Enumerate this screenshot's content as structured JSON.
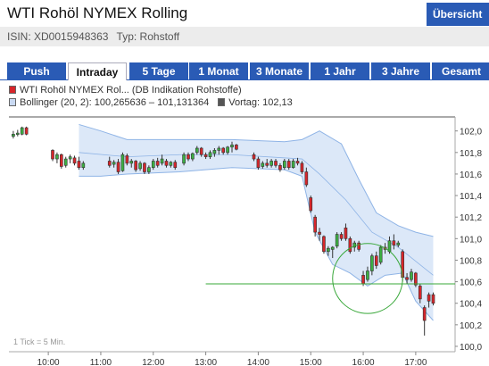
{
  "header": {
    "title": "WTI Rohöl NYMEX Rolling",
    "overview_label": "Übersicht",
    "isin": "ISIN: XD0015948363",
    "type": "Typ: Rohstoff"
  },
  "tabs": [
    {
      "label": "Push",
      "active": false
    },
    {
      "label": "Intraday",
      "active": true
    },
    {
      "label": "5 Tage",
      "active": false
    },
    {
      "label": "1 Monat",
      "active": false
    },
    {
      "label": "3 Monate",
      "active": false
    },
    {
      "label": "1 Jahr",
      "active": false
    },
    {
      "label": "3 Jahre",
      "active": false
    },
    {
      "label": "Gesamt",
      "active": false
    }
  ],
  "legend": {
    "series": "WTI Rohöl NYMEX Rol... (DB Indikation Rohstoffe)",
    "bollinger": "Bollinger (20, 2): 100,265636 – 101,131364",
    "vortag": "Vortag: 102,13"
  },
  "colors": {
    "accent": "#2a5bb5",
    "up_candle": "#3cb043",
    "down_candle": "#d7262b",
    "band_fill": "#dce8f8",
    "band_line": "#8fb4e6",
    "reference_line": "#39a83a",
    "circle": "#39a83a"
  },
  "chart_data": {
    "type": "candlestick",
    "tick_note": "1 Tick = 5 Min.",
    "x_ticks": [
      "10:00",
      "11:00",
      "12:00",
      "13:00",
      "14:00",
      "15:00",
      "16:00",
      "17:00"
    ],
    "y_ticks": [
      "100,0",
      "100,2",
      "100,4",
      "100,6",
      "100,8",
      "101,0",
      "101,2",
      "101,4",
      "101,6",
      "101,8",
      "102,0"
    ],
    "ylim": [
      99.95,
      102.13
    ],
    "xlim": [
      "09:15",
      "17:45"
    ],
    "previous_close": 102.13,
    "reference_level": 100.58,
    "highlight_circle": {
      "center_time": "16:05",
      "center_value": 100.63,
      "radius_minutes": 40
    },
    "candles": [
      {
        "t": "09:20",
        "o": 101.95,
        "h": 102.0,
        "l": 101.93,
        "c": 101.97
      },
      {
        "t": "09:25",
        "o": 101.97,
        "h": 102.01,
        "l": 101.95,
        "c": 101.98
      },
      {
        "t": "09:30",
        "o": 101.97,
        "h": 102.04,
        "l": 101.96,
        "c": 102.03
      },
      {
        "t": "09:35",
        "o": 102.03,
        "h": 102.04,
        "l": 101.96,
        "c": 101.97
      },
      {
        "t": "10:05",
        "o": 101.82,
        "h": 101.83,
        "l": 101.72,
        "c": 101.74
      },
      {
        "t": "10:10",
        "o": 101.74,
        "h": 101.8,
        "l": 101.7,
        "c": 101.78
      },
      {
        "t": "10:15",
        "o": 101.78,
        "h": 101.79,
        "l": 101.65,
        "c": 101.67
      },
      {
        "t": "10:20",
        "o": 101.68,
        "h": 101.76,
        "l": 101.66,
        "c": 101.74
      },
      {
        "t": "10:25",
        "o": 101.74,
        "h": 101.78,
        "l": 101.7,
        "c": 101.76
      },
      {
        "t": "10:30",
        "o": 101.75,
        "h": 101.77,
        "l": 101.68,
        "c": 101.7
      },
      {
        "t": "10:35",
        "o": 101.72,
        "h": 101.76,
        "l": 101.64,
        "c": 101.66
      },
      {
        "t": "10:40",
        "o": 101.66,
        "h": 101.72,
        "l": 101.64,
        "c": 101.7
      },
      {
        "t": "11:10",
        "o": 101.72,
        "h": 101.76,
        "l": 101.66,
        "c": 101.68
      },
      {
        "t": "11:15",
        "o": 101.69,
        "h": 101.73,
        "l": 101.66,
        "c": 101.71
      },
      {
        "t": "11:20",
        "o": 101.71,
        "h": 101.74,
        "l": 101.6,
        "c": 101.62
      },
      {
        "t": "11:25",
        "o": 101.63,
        "h": 101.8,
        "l": 101.62,
        "c": 101.78
      },
      {
        "t": "11:30",
        "o": 101.77,
        "h": 101.79,
        "l": 101.68,
        "c": 101.7
      },
      {
        "t": "11:35",
        "o": 101.7,
        "h": 101.74,
        "l": 101.66,
        "c": 101.72
      },
      {
        "t": "11:40",
        "o": 101.72,
        "h": 101.73,
        "l": 101.62,
        "c": 101.64
      },
      {
        "t": "11:45",
        "o": 101.65,
        "h": 101.72,
        "l": 101.63,
        "c": 101.7
      },
      {
        "t": "11:50",
        "o": 101.7,
        "h": 101.71,
        "l": 101.6,
        "c": 101.62
      },
      {
        "t": "11:55",
        "o": 101.62,
        "h": 101.68,
        "l": 101.6,
        "c": 101.66
      },
      {
        "t": "12:00",
        "o": 101.66,
        "h": 101.74,
        "l": 101.64,
        "c": 101.72
      },
      {
        "t": "12:05",
        "o": 101.72,
        "h": 101.75,
        "l": 101.66,
        "c": 101.68
      },
      {
        "t": "12:10",
        "o": 101.7,
        "h": 101.78,
        "l": 101.68,
        "c": 101.74
      },
      {
        "t": "12:15",
        "o": 101.72,
        "h": 101.74,
        "l": 101.66,
        "c": 101.68
      },
      {
        "t": "12:20",
        "o": 101.68,
        "h": 101.72,
        "l": 101.66,
        "c": 101.71
      },
      {
        "t": "12:25",
        "o": 101.71,
        "h": 101.73,
        "l": 101.64,
        "c": 101.66
      },
      {
        "t": "12:35",
        "o": 101.7,
        "h": 101.8,
        "l": 101.68,
        "c": 101.78
      },
      {
        "t": "12:40",
        "o": 101.78,
        "h": 101.8,
        "l": 101.72,
        "c": 101.74
      },
      {
        "t": "12:45",
        "o": 101.74,
        "h": 101.8,
        "l": 101.72,
        "c": 101.79
      },
      {
        "t": "12:50",
        "o": 101.8,
        "h": 101.86,
        "l": 101.78,
        "c": 101.84
      },
      {
        "t": "12:55",
        "o": 101.84,
        "h": 101.85,
        "l": 101.76,
        "c": 101.78
      },
      {
        "t": "13:00",
        "o": 101.78,
        "h": 101.8,
        "l": 101.74,
        "c": 101.76
      },
      {
        "t": "13:05",
        "o": 101.76,
        "h": 101.82,
        "l": 101.74,
        "c": 101.8
      },
      {
        "t": "13:10",
        "o": 101.79,
        "h": 101.84,
        "l": 101.76,
        "c": 101.82
      },
      {
        "t": "13:15",
        "o": 101.82,
        "h": 101.86,
        "l": 101.78,
        "c": 101.84
      },
      {
        "t": "13:20",
        "o": 101.84,
        "h": 101.85,
        "l": 101.78,
        "c": 101.8
      },
      {
        "t": "13:25",
        "o": 101.8,
        "h": 101.86,
        "l": 101.78,
        "c": 101.85
      },
      {
        "t": "13:30",
        "o": 101.85,
        "h": 101.9,
        "l": 101.8,
        "c": 101.87
      },
      {
        "t": "13:35",
        "o": 101.87,
        "h": 101.88,
        "l": 101.82,
        "c": 101.83
      },
      {
        "t": "13:55",
        "o": 101.78,
        "h": 101.8,
        "l": 101.72,
        "c": 101.74
      },
      {
        "t": "14:00",
        "o": 101.74,
        "h": 101.76,
        "l": 101.64,
        "c": 101.66
      },
      {
        "t": "14:05",
        "o": 101.67,
        "h": 101.72,
        "l": 101.65,
        "c": 101.7
      },
      {
        "t": "14:10",
        "o": 101.7,
        "h": 101.74,
        "l": 101.66,
        "c": 101.68
      },
      {
        "t": "14:15",
        "o": 101.68,
        "h": 101.74,
        "l": 101.66,
        "c": 101.72
      },
      {
        "t": "14:20",
        "o": 101.72,
        "h": 101.74,
        "l": 101.66,
        "c": 101.68
      },
      {
        "t": "14:25",
        "o": 101.68,
        "h": 101.7,
        "l": 101.62,
        "c": 101.64
      },
      {
        "t": "14:30",
        "o": 101.66,
        "h": 101.74,
        "l": 101.64,
        "c": 101.72
      },
      {
        "t": "14:35",
        "o": 101.72,
        "h": 101.74,
        "l": 101.64,
        "c": 101.66
      },
      {
        "t": "14:40",
        "o": 101.66,
        "h": 101.74,
        "l": 101.65,
        "c": 101.72
      },
      {
        "t": "14:45",
        "o": 101.72,
        "h": 101.75,
        "l": 101.68,
        "c": 101.7
      },
      {
        "t": "14:50",
        "o": 101.7,
        "h": 101.72,
        "l": 101.6,
        "c": 101.62
      },
      {
        "t": "14:55",
        "o": 101.62,
        "h": 101.66,
        "l": 101.48,
        "c": 101.5
      },
      {
        "t": "15:00",
        "o": 101.38,
        "h": 101.4,
        "l": 101.24,
        "c": 101.26
      },
      {
        "t": "15:05",
        "o": 101.2,
        "h": 101.22,
        "l": 101.02,
        "c": 101.06
      },
      {
        "t": "15:10",
        "o": 101.06,
        "h": 101.1,
        "l": 100.98,
        "c": 101.04
      },
      {
        "t": "15:15",
        "o": 101.02,
        "h": 101.03,
        "l": 100.86,
        "c": 100.88
      },
      {
        "t": "15:20",
        "o": 100.88,
        "h": 100.93,
        "l": 100.84,
        "c": 100.91
      },
      {
        "t": "15:25",
        "o": 100.9,
        "h": 100.93,
        "l": 100.82,
        "c": 100.92
      },
      {
        "t": "15:30",
        "o": 100.93,
        "h": 101.06,
        "l": 100.91,
        "c": 101.04
      },
      {
        "t": "15:35",
        "o": 101.04,
        "h": 101.06,
        "l": 100.98,
        "c": 101.0
      },
      {
        "t": "15:40",
        "o": 101.1,
        "h": 101.14,
        "l": 100.98,
        "c": 101.0
      },
      {
        "t": "15:45",
        "o": 101.0,
        "h": 101.02,
        "l": 100.86,
        "c": 100.88
      },
      {
        "t": "15:50",
        "o": 100.92,
        "h": 100.98,
        "l": 100.88,
        "c": 100.96
      },
      {
        "t": "15:55",
        "o": 100.96,
        "h": 100.98,
        "l": 100.88,
        "c": 100.9
      },
      {
        "t": "16:00",
        "o": 100.66,
        "h": 100.7,
        "l": 100.56,
        "c": 100.58
      },
      {
        "t": "16:05",
        "o": 100.62,
        "h": 100.74,
        "l": 100.6,
        "c": 100.7
      },
      {
        "t": "16:10",
        "o": 100.7,
        "h": 100.86,
        "l": 100.66,
        "c": 100.84
      },
      {
        "t": "16:15",
        "o": 100.84,
        "h": 100.88,
        "l": 100.72,
        "c": 100.75
      },
      {
        "t": "16:20",
        "o": 100.78,
        "h": 100.94,
        "l": 100.76,
        "c": 100.92
      },
      {
        "t": "16:25",
        "o": 100.92,
        "h": 100.96,
        "l": 100.86,
        "c": 100.9
      },
      {
        "t": "16:30",
        "o": 100.88,
        "h": 101.02,
        "l": 100.86,
        "c": 100.98
      },
      {
        "t": "16:35",
        "o": 100.98,
        "h": 101.04,
        "l": 100.9,
        "c": 100.94
      },
      {
        "t": "16:40",
        "o": 100.94,
        "h": 100.98,
        "l": 100.92,
        "c": 100.96
      },
      {
        "t": "16:45",
        "o": 100.88,
        "h": 100.9,
        "l": 100.6,
        "c": 100.64
      },
      {
        "t": "16:50",
        "o": 100.64,
        "h": 100.68,
        "l": 100.58,
        "c": 100.62
      },
      {
        "t": "16:55",
        "o": 100.62,
        "h": 100.72,
        "l": 100.6,
        "c": 100.69
      },
      {
        "t": "17:00",
        "o": 100.68,
        "h": 100.69,
        "l": 100.55,
        "c": 100.57
      },
      {
        "t": "17:05",
        "o": 100.56,
        "h": 100.58,
        "l": 100.4,
        "c": 100.44
      },
      {
        "t": "17:10",
        "o": 100.36,
        "h": 100.38,
        "l": 100.1,
        "c": 100.24
      },
      {
        "t": "17:15",
        "o": 100.48,
        "h": 100.5,
        "l": 100.36,
        "c": 100.42
      },
      {
        "t": "17:20",
        "o": 100.48,
        "h": 100.5,
        "l": 100.38,
        "c": 100.4
      }
    ],
    "bollinger_upper": [
      {
        "t": "10:35",
        "v": 102.06
      },
      {
        "t": "11:00",
        "v": 102.0
      },
      {
        "t": "11:30",
        "v": 101.92
      },
      {
        "t": "12:30",
        "v": 101.92
      },
      {
        "t": "13:30",
        "v": 101.92
      },
      {
        "t": "14:30",
        "v": 101.9
      },
      {
        "t": "14:50",
        "v": 101.92
      },
      {
        "t": "15:10",
        "v": 102.0
      },
      {
        "t": "15:35",
        "v": 101.88
      },
      {
        "t": "15:55",
        "v": 101.55
      },
      {
        "t": "16:15",
        "v": 101.24
      },
      {
        "t": "16:40",
        "v": 101.12
      },
      {
        "t": "17:00",
        "v": 101.06
      },
      {
        "t": "17:20",
        "v": 101.02
      }
    ],
    "bollinger_lower": [
      {
        "t": "10:35",
        "v": 101.58
      },
      {
        "t": "11:00",
        "v": 101.58
      },
      {
        "t": "11:30",
        "v": 101.6
      },
      {
        "t": "12:30",
        "v": 101.62
      },
      {
        "t": "13:30",
        "v": 101.66
      },
      {
        "t": "14:30",
        "v": 101.64
      },
      {
        "t": "14:50",
        "v": 101.58
      },
      {
        "t": "15:05",
        "v": 101.06
      },
      {
        "t": "15:25",
        "v": 100.76
      },
      {
        "t": "15:45",
        "v": 100.68
      },
      {
        "t": "16:05",
        "v": 100.56
      },
      {
        "t": "16:25",
        "v": 100.66
      },
      {
        "t": "16:45",
        "v": 100.68
      },
      {
        "t": "17:00",
        "v": 100.42
      },
      {
        "t": "17:20",
        "v": 100.24
      }
    ],
    "bollinger_mid": [
      {
        "t": "10:35",
        "v": 101.8
      },
      {
        "t": "11:30",
        "v": 101.76
      },
      {
        "t": "12:30",
        "v": 101.78
      },
      {
        "t": "13:30",
        "v": 101.78
      },
      {
        "t": "14:50",
        "v": 101.74
      },
      {
        "t": "15:10",
        "v": 101.6
      },
      {
        "t": "15:40",
        "v": 101.36
      },
      {
        "t": "16:10",
        "v": 101.06
      },
      {
        "t": "16:40",
        "v": 100.92
      },
      {
        "t": "17:20",
        "v": 100.66
      }
    ]
  }
}
